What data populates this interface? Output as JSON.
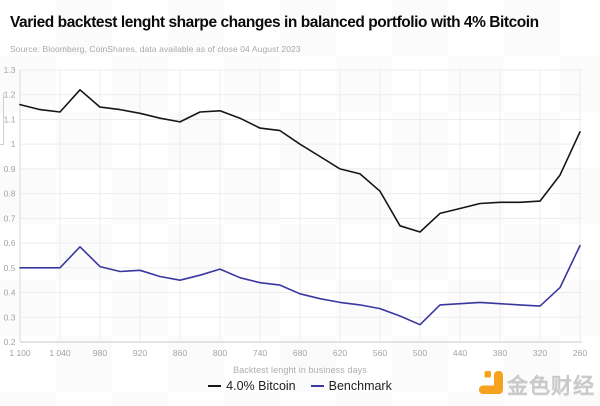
{
  "header": {
    "title": "Varied backtest lenght sharpe changes in balanced portfolio with 4% Bitcoin",
    "source": "Source: Bloomberg, CoinShares, data available as of close 04 August 2023"
  },
  "chart_data": {
    "type": "line",
    "x": [
      1100,
      1070,
      1040,
      1010,
      980,
      950,
      920,
      890,
      860,
      830,
      800,
      770,
      740,
      710,
      680,
      650,
      620,
      590,
      560,
      530,
      500,
      470,
      440,
      410,
      380,
      350,
      320,
      290,
      260
    ],
    "series": [
      {
        "name": "4.0% Bitcoin",
        "color": "#161616",
        "values": [
          1.16,
          1.14,
          1.13,
          1.22,
          1.15,
          1.14,
          1.125,
          1.105,
          1.09,
          1.13,
          1.135,
          1.105,
          1.065,
          1.055,
          1.0,
          0.95,
          0.9,
          0.88,
          0.81,
          0.67,
          0.645,
          0.72,
          0.74,
          0.76,
          0.765,
          0.765,
          0.77,
          0.875,
          1.05
        ]
      },
      {
        "name": "Benchmark",
        "color": "#3b37a0",
        "values": [
          0.5,
          0.5,
          0.5,
          0.585,
          0.505,
          0.485,
          0.49,
          0.465,
          0.45,
          0.47,
          0.495,
          0.46,
          0.44,
          0.43,
          0.395,
          0.375,
          0.36,
          0.35,
          0.335,
          0.305,
          0.27,
          0.35,
          0.355,
          0.36,
          0.355,
          0.35,
          0.345,
          0.42,
          0.59
        ]
      }
    ],
    "title": "Varied backtest lenght sharpe changes in balanced portfolio with 4% Bitcoin",
    "xlabel": "Backtest lenght in business days",
    "ylabel": "",
    "x_tick_values": [
      1100,
      1040,
      980,
      920,
      860,
      800,
      740,
      680,
      620,
      560,
      500,
      440,
      380,
      320,
      260
    ],
    "x_tick_labels": [
      "1 100",
      "1 040",
      "980",
      "920",
      "860",
      "800",
      "740",
      "680",
      "620",
      "560",
      "500",
      "440",
      "380",
      "320",
      "260"
    ],
    "y_tick_values": [
      1.3,
      1.2,
      1.1,
      1.0,
      0.9,
      0.8,
      0.7,
      0.6,
      0.5,
      0.4,
      0.3,
      0.2
    ],
    "y_tick_labels": [
      "1.3",
      "1.2",
      "1.1",
      "1",
      "0.9",
      "0.8",
      "0.7",
      "0.6",
      "0.5",
      "0.4",
      "0.3",
      "0.2"
    ],
    "xlim": [
      1100,
      260
    ],
    "ylim": [
      0.2,
      1.3
    ],
    "x_reversed": true,
    "grid": true,
    "legend_position": "bottom"
  },
  "colors": {
    "grid": "#ececec",
    "y_axis": "#d9d9d9",
    "x_axis": "#c9c9c9",
    "tick_label": "#a3a3a3"
  },
  "watermark_logo": {
    "text": "金色财经",
    "icon": "jinse-logo-icon",
    "icon_color": "#f6a21e",
    "text_color": "#c9c9c9"
  }
}
